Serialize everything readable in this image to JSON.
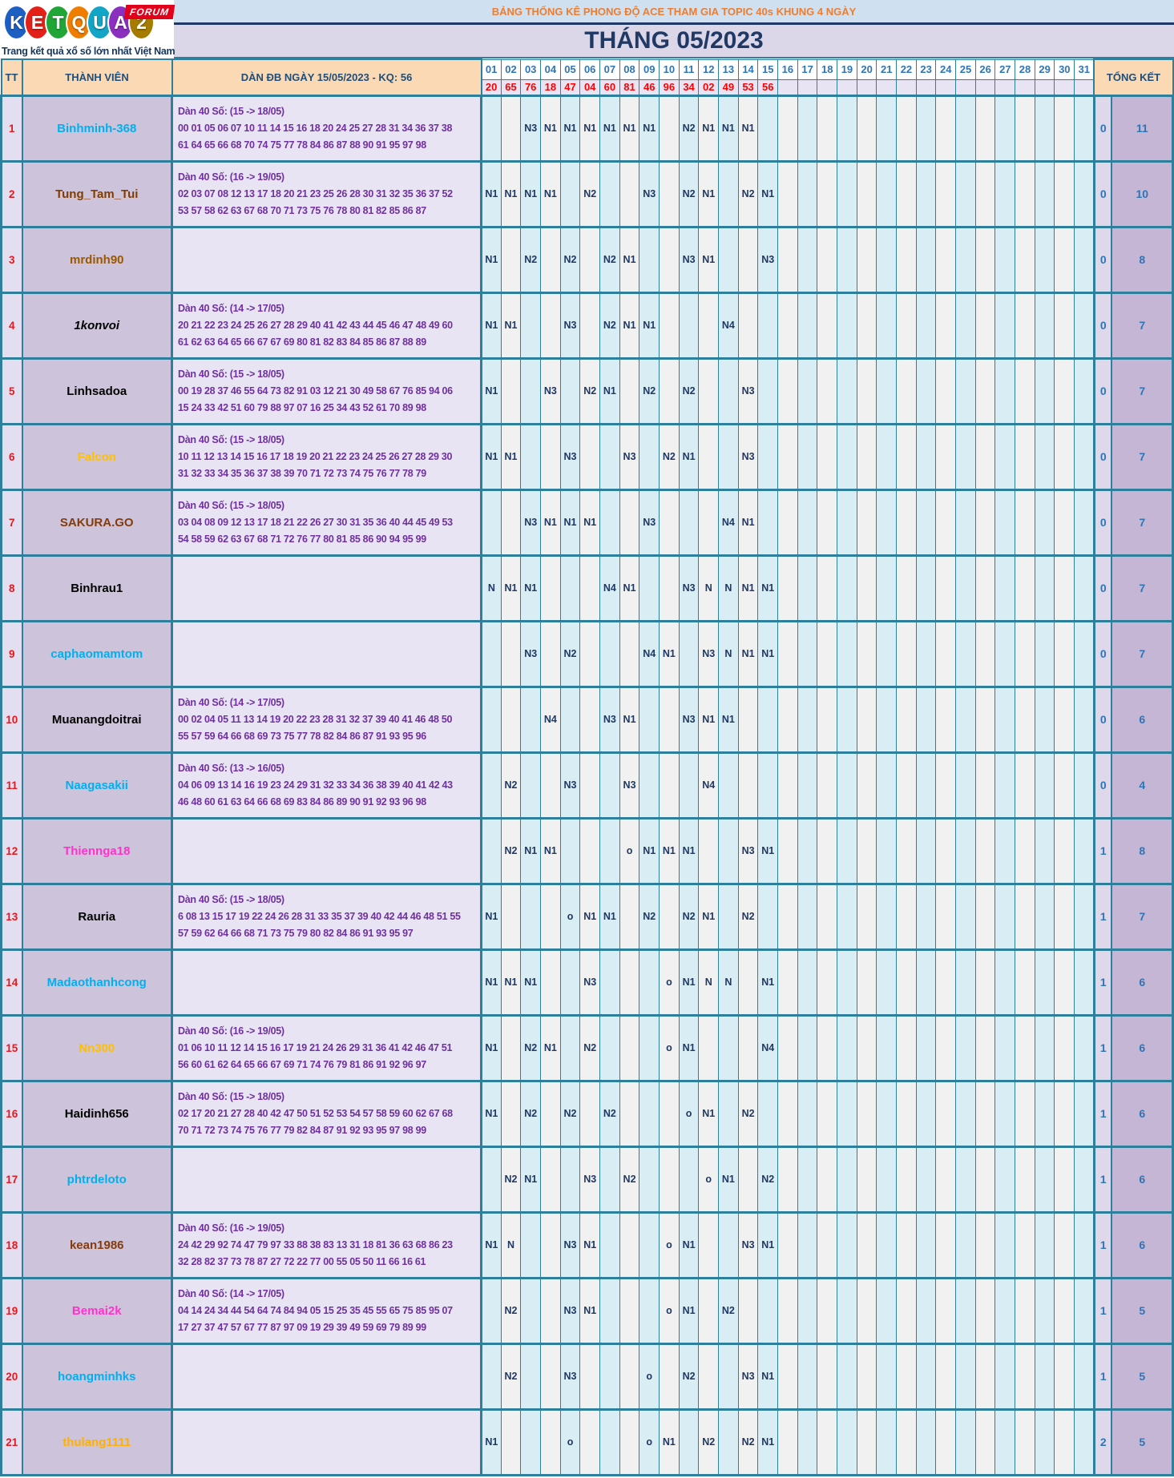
{
  "logo": {
    "letters": [
      {
        "ch": "K",
        "color": "#1e5fc4"
      },
      {
        "ch": "E",
        "color": "#e32119"
      },
      {
        "ch": "T",
        "color": "#1fa637"
      },
      {
        "ch": "Q",
        "color": "#ef7d00"
      },
      {
        "ch": "U",
        "color": "#12a5c6"
      },
      {
        "ch": "A",
        "color": "#8a2fbe"
      },
      {
        "ch": "2",
        "color": "#a67c00"
      }
    ],
    "forum_badge": "FORUM",
    "tagline": "Trang kết quả xổ số lớn nhất Việt Nam"
  },
  "header": {
    "title": "BẢNG THỐNG KÊ PHONG ĐỘ ACE THAM GIA TOPIC 40s KHUNG 4 NGÀY",
    "month_title": "THÁNG 05/2023"
  },
  "colors": {
    "border_teal": "#2e7f9b",
    "header_peach": "#fcd9b5",
    "result_red": "#fe0000",
    "cell_navy": "#1f3864",
    "total_blue": "#2e75b6",
    "day_col_cyan": "#d9edf4",
    "day_col_gray": "#f1f1f1"
  },
  "table": {
    "col_tt": "TT",
    "col_member": "THÀNH VIÊN",
    "col_dan": "DÀN ĐB NGÀY 15/05/2023 - KQ: 56",
    "col_total": "TỔNG KẾT",
    "days": [
      "01",
      "02",
      "03",
      "04",
      "05",
      "06",
      "07",
      "08",
      "09",
      "10",
      "11",
      "12",
      "13",
      "14",
      "15",
      "16",
      "17",
      "18",
      "19",
      "20",
      "21",
      "22",
      "23",
      "24",
      "25",
      "26",
      "27",
      "28",
      "29",
      "30",
      "31"
    ],
    "day_results": [
      "20",
      "65",
      "76",
      "18",
      "47",
      "04",
      "60",
      "81",
      "46",
      "96",
      "34",
      "02",
      "49",
      "53",
      "56"
    ],
    "rows": [
      {
        "tt": "1",
        "name": "Binhminh-368",
        "name_color": "#00b0f0",
        "italic": false,
        "dan_title": "Dàn 40 Số: (15 -> 18/05)",
        "dan_line1": "00 01 05 06 07 10 11 14 15 16 18 20 24 25 27 28 31 34 36 37 38",
        "dan_line2": "61 64 65 66 68 70 74 75 77 78 84 86 87 88 90 91 95 97 98",
        "cells": {
          "3": "N3",
          "4": "N1",
          "5": "N1",
          "6": "N1",
          "7": "N1",
          "8": "N1",
          "9": "N1",
          "11": "N2",
          "12": "N1",
          "13": "N1",
          "14": "N1"
        },
        "total_o": "0",
        "total_n": "11"
      },
      {
        "tt": "2",
        "name": "Tung_Tam_Tui",
        "name_color": "#833c00",
        "italic": false,
        "dan_title": "Dàn 40 Số: (16 -> 19/05)",
        "dan_line1": "02 03 07 08 12 13 17 18 20 21 23 25 26 28 30 31 32 35 36 37 52",
        "dan_line2": "53 57 58 62 63 67 68 70 71 73 75 76 78 80 81 82 85 86 87",
        "cells": {
          "1": "N1",
          "2": "N1",
          "3": "N1",
          "4": "N1",
          "6": "N2",
          "9": "N3",
          "11": "N2",
          "12": "N1",
          "14": "N2",
          "15": "N1"
        },
        "total_o": "0",
        "total_n": "10"
      },
      {
        "tt": "3",
        "name": "mrdinh90",
        "name_color": "#9c5700",
        "italic": false,
        "dan_title": "",
        "dan_line1": "",
        "dan_line2": "",
        "cells": {
          "1": "N1",
          "3": "N2",
          "5": "N2",
          "7": "N2",
          "8": "N1",
          "11": "N3",
          "12": "N1",
          "15": "N3"
        },
        "total_o": "0",
        "total_n": "8"
      },
      {
        "tt": "4",
        "name": "1konvoi",
        "name_color": "#000000",
        "italic": true,
        "dan_title": "Dàn 40 Số: (14 -> 17/05)",
        "dan_line1": "20 21 22 23 24 25 26 27 28 29 40 41 42 43 44 45 46 47 48 49 60",
        "dan_line2": "61 62 63 64 65 66 67 67 69 80 81 82 83 84 85 86 87 88 89",
        "cells": {
          "1": "N1",
          "2": "N1",
          "5": "N3",
          "7": "N2",
          "8": "N1",
          "9": "N1",
          "13": "N4"
        },
        "total_o": "0",
        "total_n": "7"
      },
      {
        "tt": "5",
        "name": "Linhsadoa",
        "name_color": "#000000",
        "italic": false,
        "dan_title": "Dàn 40 Số: (15 -> 18/05)",
        "dan_line1": "00 19 28 37 46 55 64 73 82 91 03 12 21 30 49 58 67 76 85 94 06",
        "dan_line2": "15 24 33 42 51 60 79 88 97 07 16 25 34 43 52 61 70 89 98",
        "cells": {
          "1": "N1",
          "4": "N3",
          "6": "N2",
          "7": "N1",
          "9": "N2",
          "11": "N2",
          "14": "N3"
        },
        "total_o": "0",
        "total_n": "7"
      },
      {
        "tt": "6",
        "name": "Falcon",
        "name_color": "#ffc000",
        "italic": false,
        "dan_title": "Dàn 40 Số: (15 -> 18/05)",
        "dan_line1": "10 11 12 13 14 15 16 17 18 19 20 21 22 23 24 25 26 27 28 29 30",
        "dan_line2": "31 32 33 34 35 36 37 38 39 70 71 72 73 74 75 76 77 78 79",
        "cells": {
          "1": "N1",
          "2": "N1",
          "5": "N3",
          "8": "N3",
          "10": "N2",
          "11": "N1",
          "14": "N3"
        },
        "total_o": "0",
        "total_n": "7"
      },
      {
        "tt": "7",
        "name": "SAKURA.GO",
        "name_color": "#843c0c",
        "italic": false,
        "dan_title": "Dàn 40 Số: (15 -> 18/05)",
        "dan_line1": "03 04 08 09 12 13 17 18 21 22 26 27 30 31 35 36 40 44 45 49 53",
        "dan_line2": "54 58 59 62 63 67 68 71 72 76 77 80 81 85 86 90 94 95 99",
        "cells": {
          "3": "N3",
          "4": "N1",
          "5": "N1",
          "6": "N1",
          "9": "N3",
          "13": "N4",
          "14": "N1"
        },
        "total_o": "0",
        "total_n": "7"
      },
      {
        "tt": "8",
        "name": "Binhrau1",
        "name_color": "#000000",
        "italic": false,
        "dan_title": "",
        "dan_line1": "",
        "dan_line2": "",
        "cells": {
          "1": "N",
          "2": "N1",
          "3": "N1",
          "7": "N4",
          "8": "N1",
          "11": "N3",
          "12": "N",
          "13": "N",
          "14": "N1",
          "15": "N1"
        },
        "total_o": "0",
        "total_n": "7"
      },
      {
        "tt": "9",
        "name": "caphaomamtom",
        "name_color": "#00b0f0",
        "italic": false,
        "dan_title": "",
        "dan_line1": "",
        "dan_line2": "",
        "cells": {
          "3": "N3",
          "5": "N2",
          "9": "N4",
          "10": "N1",
          "12": "N3",
          "13": "N",
          "14": "N1",
          "15": "N1"
        },
        "total_o": "0",
        "total_n": "7"
      },
      {
        "tt": "10",
        "name": "Muanangdoitrai",
        "name_color": "#000000",
        "italic": false,
        "dan_title": "Dàn 40 Số: (14 -> 17/05)",
        "dan_line1": "00 02 04 05 11 13 14 19 20 22 23 28 31 32 37 39 40 41 46 48 50",
        "dan_line2": "55 57 59 64 66 68 69 73 75 77 78 82 84 86 87 91 93 95 96",
        "cells": {
          "4": "N4",
          "7": "N3",
          "8": "N1",
          "11": "N3",
          "12": "N1",
          "13": "N1"
        },
        "total_o": "0",
        "total_n": "6"
      },
      {
        "tt": "11",
        "name": "Naagasakii",
        "name_color": "#00b0f0",
        "italic": false,
        "dan_title": "Dàn 40 Số: (13 -> 16/05)",
        "dan_line1": "04 06 09 13 14 16 19 23 24 29 31 32 33 34 36 38 39 40 41 42 43",
        "dan_line2": "46 48 60 61 63 64 66 68 69 83 84 86 89 90 91 92 93 96 98",
        "cells": {
          "2": "N2",
          "5": "N3",
          "8": "N3",
          "12": "N4"
        },
        "total_o": "0",
        "total_n": "4"
      },
      {
        "tt": "12",
        "name": "Thiennga18",
        "name_color": "#ff33cc",
        "italic": false,
        "dan_title": "",
        "dan_line1": "",
        "dan_line2": "",
        "cells": {
          "2": "N2",
          "3": "N1",
          "4": "N1",
          "8": "o",
          "9": "N1",
          "10": "N1",
          "11": "N1",
          "14": "N3",
          "15": "N1"
        },
        "total_o": "1",
        "total_n": "8"
      },
      {
        "tt": "13",
        "name": "Rauria",
        "name_color": "#000000",
        "italic": false,
        "dan_title": "Dàn 40 Số: (15 -> 18/05)",
        "dan_line1": "6 08 13 15 17 19 22 24 26 28 31 33 35 37 39 40 42 44 46 48 51 55",
        "dan_line2": "57 59 62 64 66 68 71 73 75 79 80 82 84 86 91 93 95 97",
        "cells": {
          "1": "N1",
          "5": "o",
          "6": "N1",
          "7": "N1",
          "9": "N2",
          "11": "N2",
          "12": "N1",
          "14": "N2"
        },
        "total_o": "1",
        "total_n": "7"
      },
      {
        "tt": "14",
        "name": "Madaothanhcong",
        "name_color": "#00b0f0",
        "italic": false,
        "dan_title": "",
        "dan_line1": "",
        "dan_line2": "",
        "cells": {
          "1": "N1",
          "2": "N1",
          "3": "N1",
          "6": "N3",
          "10": "o",
          "11": "N1",
          "12": "N",
          "13": "N",
          "15": "N1"
        },
        "total_o": "1",
        "total_n": "6"
      },
      {
        "tt": "15",
        "name": "Nn300",
        "name_color": "#ffc000",
        "italic": false,
        "dan_title": "Dàn 40 Số: (16 -> 19/05)",
        "dan_line1": "01 06 10 11 12 14 15 16 17 19 21 24 26 29 31 36 41 42 46 47 51",
        "dan_line2": "56 60 61 62 64 65 66 67 69 71 74 76 79 81 86 91 92 96 97",
        "cells": {
          "1": "N1",
          "3": "N2",
          "4": "N1",
          "6": "N2",
          "10": "o",
          "11": "N1",
          "15": "N4"
        },
        "total_o": "1",
        "total_n": "6"
      },
      {
        "tt": "16",
        "name": "Haidinh656",
        "name_color": "#000000",
        "italic": false,
        "dan_title": "Dàn 40 Số: (15 -> 18/05)",
        "dan_line1": "02 17 20 21 27 28 40 42 47 50 51 52 53 54 57 58 59 60 62 67 68",
        "dan_line2": "70 71 72 73 74 75 76 77 79 82 84 87 91 92 93 95 97 98 99",
        "cells": {
          "1": "N1",
          "3": "N2",
          "5": "N2",
          "7": "N2",
          "11": "o",
          "12": "N1",
          "14": "N2"
        },
        "total_o": "1",
        "total_n": "6"
      },
      {
        "tt": "17",
        "name": "phtrdeloto",
        "name_color": "#00b0f0",
        "italic": false,
        "dan_title": "",
        "dan_line1": "",
        "dan_line2": "",
        "cells": {
          "2": "N2",
          "3": "N1",
          "6": "N3",
          "8": "N2",
          "12": "o",
          "13": "N1",
          "15": "N2"
        },
        "total_o": "1",
        "total_n": "6"
      },
      {
        "tt": "18",
        "name": "kean1986",
        "name_color": "#843c0c",
        "italic": false,
        "dan_title": "Dàn 40 Số: (16 -> 19/05)",
        "dan_line1": "24 42 29 92 74 47 79 97 33 88 38 83 13 31 18 81 36 63 68 86 23",
        "dan_line2": "32 28 82 37 73 78 87 27 72 22 77 00 55 05 50 11 66 16 61",
        "cells": {
          "1": "N1",
          "2": "N",
          "5": "N3",
          "6": "N1",
          "10": "o",
          "11": "N1",
          "14": "N3",
          "15": "N1"
        },
        "total_o": "1",
        "total_n": "6"
      },
      {
        "tt": "19",
        "name": "Bemai2k",
        "name_color": "#ff33cc",
        "italic": false,
        "dan_title": "Dàn 40 Số: (14 -> 17/05)",
        "dan_line1": "04 14 24 34 44 54 64 74 84 94 05 15 25 35 45 55 65 75 85 95 07",
        "dan_line2": "17 27 37 47 57 67 77 87 97 09 19 29 39 49 59 69 79 89 99",
        "cells": {
          "2": "N2",
          "5": "N3",
          "6": "N1",
          "10": "o",
          "11": "N1",
          "13": "N2"
        },
        "total_o": "1",
        "total_n": "5"
      },
      {
        "tt": "20",
        "name": "hoangminhks",
        "name_color": "#00b0f0",
        "italic": false,
        "dan_title": "",
        "dan_line1": "",
        "dan_line2": "",
        "cells": {
          "2": "N2",
          "5": "N3",
          "9": "o",
          "11": "N2",
          "14": "N3",
          "15": "N1"
        },
        "total_o": "1",
        "total_n": "5"
      },
      {
        "tt": "21",
        "name": "thulang1111",
        "name_color": "#ffb000",
        "italic": false,
        "dan_title": "",
        "dan_line1": "",
        "dan_line2": "",
        "cells": {
          "1": "N1",
          "5": "o",
          "9": "o",
          "10": "N1",
          "12": "N2",
          "14": "N2",
          "15": "N1"
        },
        "total_o": "2",
        "total_n": "5"
      }
    ]
  }
}
